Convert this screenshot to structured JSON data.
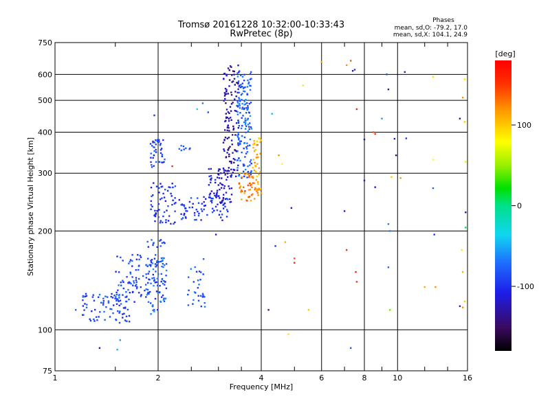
{
  "chart_data": {
    "type": "scatter",
    "title": "Tromsø 20161228 10:32:00-10:33:43",
    "subtitle": "RwPretec (8p)",
    "xlabel": "Frequency [MHz]",
    "ylabel": "Stationary phase Virtual Height [km]",
    "x_scale": "log",
    "y_scale": "log",
    "xlim": [
      1,
      16
    ],
    "ylim": [
      75,
      750
    ],
    "x_ticks": [
      1,
      2,
      4,
      6,
      8,
      10,
      16
    ],
    "x_tick_labels": [
      "1",
      "2",
      "4",
      "6",
      "8",
      "10",
      "16"
    ],
    "x_minor_ticks": [
      1.5,
      2.5,
      3,
      3.5,
      5,
      7,
      9,
      12,
      14
    ],
    "y_ticks": [
      75,
      100,
      200,
      300,
      400,
      500,
      600,
      750
    ],
    "y_tick_labels": [
      "75",
      "100",
      "200",
      "300",
      "400",
      "500",
      "600",
      "750"
    ],
    "grid": true,
    "stats": {
      "heading": "Phases",
      "line1": "mean, sd,O: -79.2, 17.0",
      "line2": "mean, sd,X: 104.1, 24.9"
    },
    "colorbar": {
      "label": "[deg]",
      "range": [
        -180,
        180
      ],
      "ticks": [
        100,
        0,
        -100
      ],
      "tick_labels": [
        "100",
        "0",
        "-100"
      ],
      "colormap": "rainbow"
    },
    "clusters": [
      {
        "f": [
          1.2,
          1.65
        ],
        "h": [
          105,
          130
        ],
        "phase": [
          -110,
          -70
        ],
        "count": 80
      },
      {
        "f": [
          1.5,
          2.1
        ],
        "h": [
          120,
          170
        ],
        "phase": [
          -110,
          -70
        ],
        "count": 120
      },
      {
        "f": [
          1.85,
          2.12
        ],
        "h": [
          110,
          190
        ],
        "phase": [
          -110,
          -60
        ],
        "count": 70
      },
      {
        "f": [
          2.4,
          2.75
        ],
        "h": [
          115,
          165
        ],
        "phase": [
          -100,
          -60
        ],
        "count": 30
      },
      {
        "f": [
          1.9,
          2.25
        ],
        "h": [
          210,
          280
        ],
        "phase": [
          -115,
          -80
        ],
        "count": 60
      },
      {
        "f": [
          1.9,
          2.1
        ],
        "h": [
          310,
          380
        ],
        "phase": [
          -110,
          -75
        ],
        "count": 40
      },
      {
        "f": [
          2.3,
          2.5
        ],
        "h": [
          350,
          365
        ],
        "phase": [
          -90,
          -70
        ],
        "count": 8
      },
      {
        "f": [
          2.3,
          3.2
        ],
        "h": [
          215,
          255
        ],
        "phase": [
          -115,
          -80
        ],
        "count": 70
      },
      {
        "f": [
          2.8,
          3.3
        ],
        "h": [
          240,
          310
        ],
        "phase": [
          -130,
          -100
        ],
        "count": 70
      },
      {
        "f": [
          3.1,
          3.45
        ],
        "h": [
          290,
          640
        ],
        "phase": [
          -150,
          -110
        ],
        "count": 130
      },
      {
        "f": [
          3.4,
          3.75
        ],
        "h": [
          290,
          620
        ],
        "phase": [
          -100,
          -60
        ],
        "count": 150
      },
      {
        "f": [
          3.45,
          3.95
        ],
        "h": [
          245,
          300
        ],
        "phase": [
          110,
          145
        ],
        "count": 50
      },
      {
        "f": [
          3.75,
          4.0
        ],
        "h": [
          260,
          385
        ],
        "phase": [
          90,
          130
        ],
        "count": 40
      }
    ],
    "scatter_points": [
      {
        "f": 1.15,
        "h": 115,
        "phase": -80
      },
      {
        "f": 1.35,
        "h": 88,
        "phase": -120
      },
      {
        "f": 1.55,
        "h": 93,
        "phase": -60
      },
      {
        "f": 1.52,
        "h": 87,
        "phase": -50
      },
      {
        "f": 1.95,
        "h": 450,
        "phase": -100
      },
      {
        "f": 2.6,
        "h": 470,
        "phase": -40
      },
      {
        "f": 2.7,
        "h": 490,
        "phase": -70
      },
      {
        "f": 2.8,
        "h": 460,
        "phase": -90
      },
      {
        "f": 2.2,
        "h": 315,
        "phase": 150
      },
      {
        "f": 2.95,
        "h": 195,
        "phase": -110
      },
      {
        "f": 4.2,
        "h": 115,
        "phase": -120
      },
      {
        "f": 4.3,
        "h": 455,
        "phase": -50
      },
      {
        "f": 4.4,
        "h": 180,
        "phase": -100
      },
      {
        "f": 4.5,
        "h": 340,
        "phase": 120
      },
      {
        "f": 4.6,
        "h": 320,
        "phase": 80
      },
      {
        "f": 4.7,
        "h": 185,
        "phase": 110
      },
      {
        "f": 4.8,
        "h": 97,
        "phase": 90
      },
      {
        "f": 4.9,
        "h": 235,
        "phase": -130
      },
      {
        "f": 5.0,
        "h": 165,
        "phase": 140
      },
      {
        "f": 5.0,
        "h": 160,
        "phase": 160
      },
      {
        "f": 5.3,
        "h": 555,
        "phase": 90
      },
      {
        "f": 5.5,
        "h": 115,
        "phase": 100
      },
      {
        "f": 6.0,
        "h": 655,
        "phase": 110
      },
      {
        "f": 7.0,
        "h": 230,
        "phase": -120
      },
      {
        "f": 7.1,
        "h": 175,
        "phase": 150
      },
      {
        "f": 7.1,
        "h": 640,
        "phase": 120
      },
      {
        "f": 7.3,
        "h": 660,
        "phase": 140
      },
      {
        "f": 7.4,
        "h": 615,
        "phase": -130
      },
      {
        "f": 7.5,
        "h": 620,
        "phase": -100
      },
      {
        "f": 7.6,
        "h": 470,
        "phase": 160
      },
      {
        "f": 7.55,
        "h": 150,
        "phase": 160
      },
      {
        "f": 7.6,
        "h": 140,
        "phase": 150
      },
      {
        "f": 7.3,
        "h": 88,
        "phase": -80
      },
      {
        "f": 8.0,
        "h": 380,
        "phase": -140
      },
      {
        "f": 8.0,
        "h": 285,
        "phase": -120
      },
      {
        "f": 8.5,
        "h": 400,
        "phase": 140
      },
      {
        "f": 8.6,
        "h": 395,
        "phase": 150
      },
      {
        "f": 8.6,
        "h": 272,
        "phase": -120
      },
      {
        "f": 9.0,
        "h": 440,
        "phase": -60
      },
      {
        "f": 9.3,
        "h": 600,
        "phase": -90
      },
      {
        "f": 9.4,
        "h": 540,
        "phase": -130
      },
      {
        "f": 9.4,
        "h": 210,
        "phase": -70
      },
      {
        "f": 9.5,
        "h": 200,
        "phase": -70
      },
      {
        "f": 9.4,
        "h": 155,
        "phase": -80
      },
      {
        "f": 9.5,
        "h": 115,
        "phase": 40
      },
      {
        "f": 9.6,
        "h": 292,
        "phase": 100
      },
      {
        "f": 9.9,
        "h": 340,
        "phase": -140
      },
      {
        "f": 9.8,
        "h": 382,
        "phase": -120
      },
      {
        "f": 10.2,
        "h": 290,
        "phase": 120
      },
      {
        "f": 10.5,
        "h": 610,
        "phase": -110
      },
      {
        "f": 10.6,
        "h": 383,
        "phase": -100
      },
      {
        "f": 12.0,
        "h": 135,
        "phase": 110
      },
      {
        "f": 12.7,
        "h": 590,
        "phase": 90
      },
      {
        "f": 12.7,
        "h": 330,
        "phase": 80
      },
      {
        "f": 12.7,
        "h": 270,
        "phase": -80
      },
      {
        "f": 12.8,
        "h": 195,
        "phase": -100
      },
      {
        "f": 12.9,
        "h": 135,
        "phase": 120
      },
      {
        "f": 15.2,
        "h": 440,
        "phase": -130
      },
      {
        "f": 15.5,
        "h": 510,
        "phase": 120
      },
      {
        "f": 15.4,
        "h": 175,
        "phase": 90
      },
      {
        "f": 15.5,
        "h": 150,
        "phase": 110
      },
      {
        "f": 15.2,
        "h": 118,
        "phase": -120
      },
      {
        "f": 15.5,
        "h": 117,
        "phase": 120
      },
      {
        "f": 15.7,
        "h": 580,
        "phase": 90
      },
      {
        "f": 15.7,
        "h": 430,
        "phase": 100
      },
      {
        "f": 15.8,
        "h": 325,
        "phase": 70
      },
      {
        "f": 15.8,
        "h": 228,
        "phase": -130
      },
      {
        "f": 15.8,
        "h": 205,
        "phase": 10
      },
      {
        "f": 15.7,
        "h": 122,
        "phase": 100
      }
    ]
  }
}
